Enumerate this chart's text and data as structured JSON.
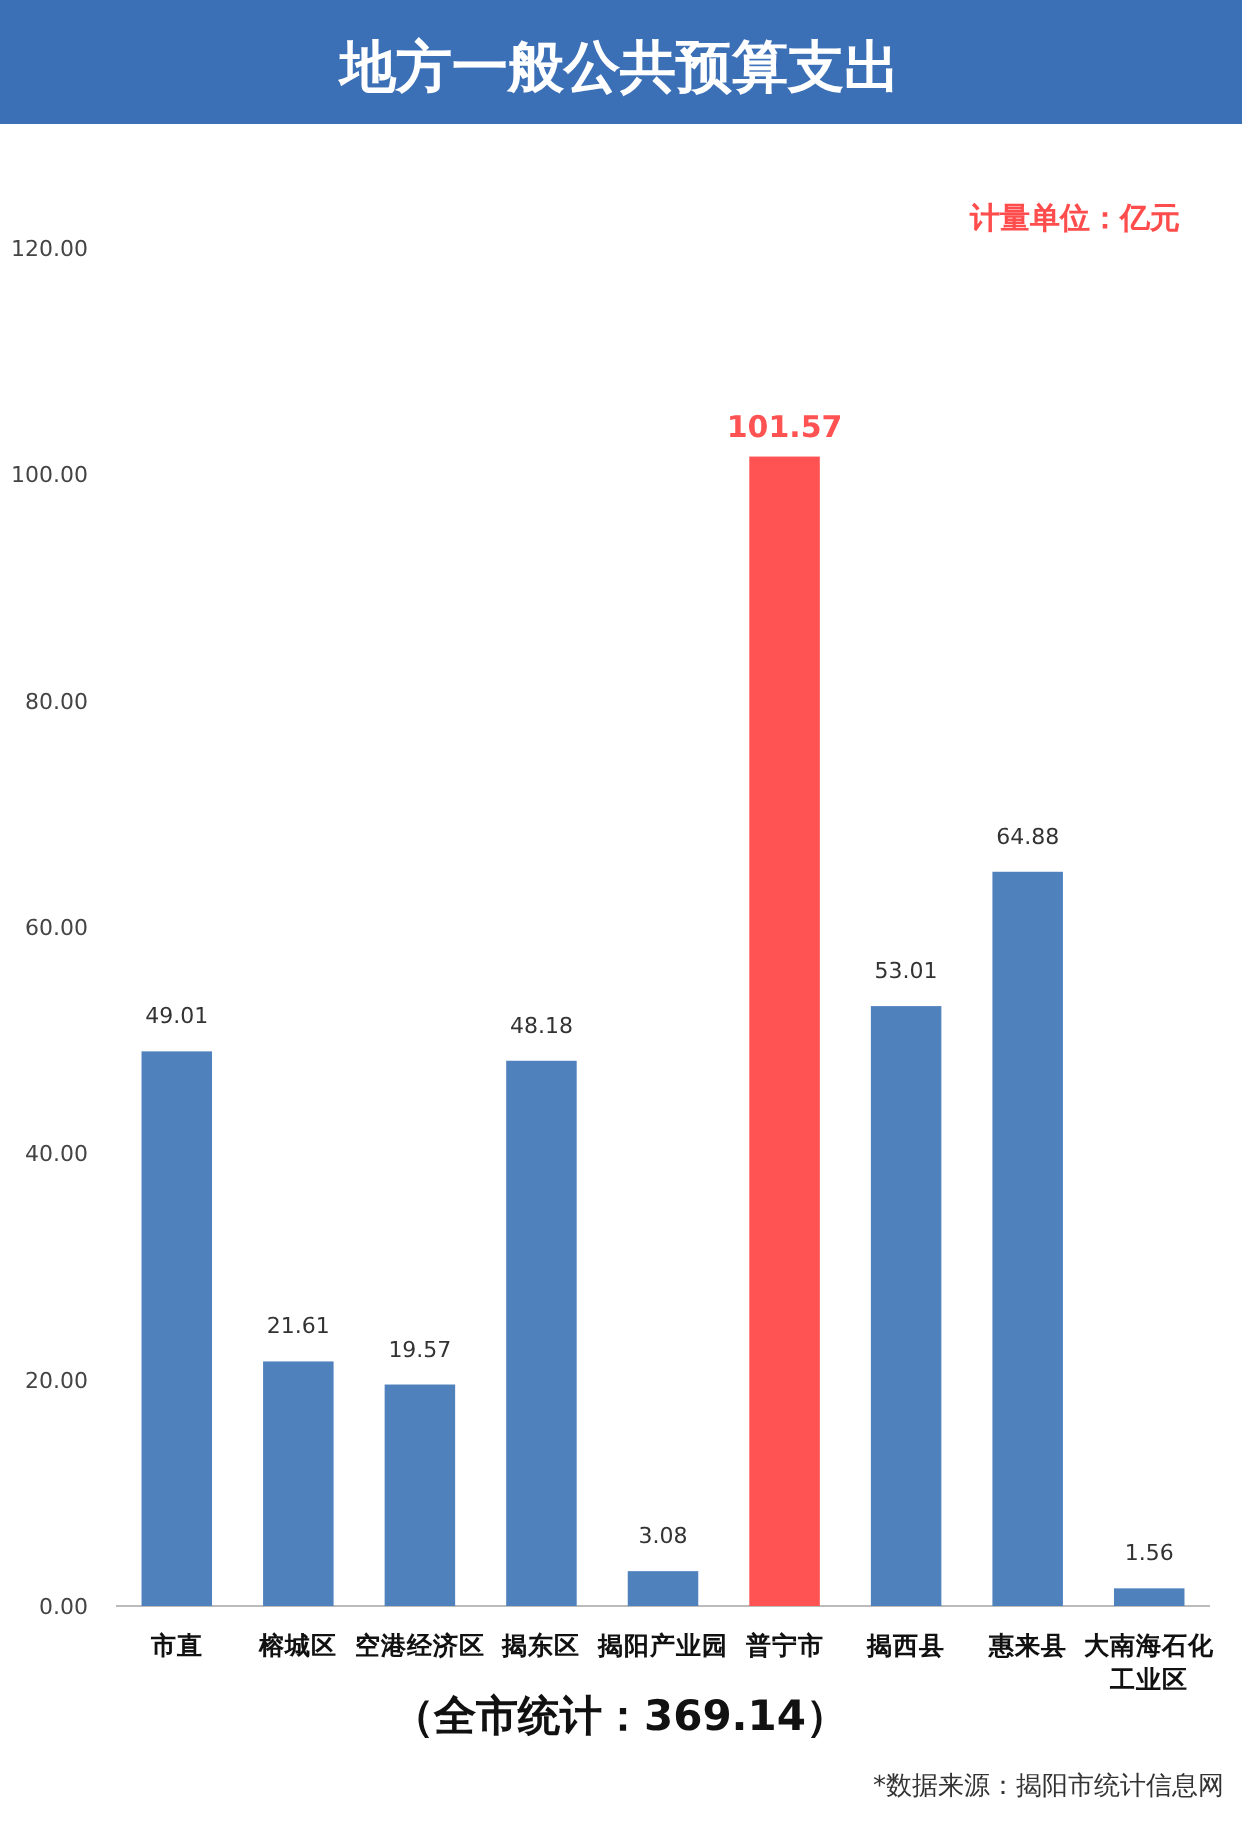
{
  "chart_data": {
    "type": "bar",
    "title": "地方一般公共预算支出",
    "categories": [
      "市直",
      "榕城区",
      "空港经济区",
      "揭东区",
      "揭阳产业园",
      "普宁市",
      "揭西县",
      "惠来县",
      "大南海石化工业区"
    ],
    "values": [
      49.01,
      21.61,
      19.57,
      48.18,
      3.08,
      101.57,
      53.01,
      64.88,
      1.56
    ],
    "colors": [
      "#4f81bd",
      "#4f81bd",
      "#4f81bd",
      "#4f81bd",
      "#4f81bd",
      "#ff5252",
      "#4f81bd",
      "#4f81bd",
      "#4f81bd"
    ],
    "data_labels": true,
    "ylim": [
      0,
      120
    ],
    "yticks": [
      {
        "value": 0,
        "label": "0.00"
      },
      {
        "value": 20,
        "label": "20.00"
      },
      {
        "value": 40,
        "label": "40.00"
      },
      {
        "value": 60,
        "label": "60.00"
      },
      {
        "value": 80,
        "label": "80.00"
      },
      {
        "value": 100,
        "label": "100.00"
      },
      {
        "value": 120,
        "label": "120.00"
      }
    ],
    "grid": false,
    "annotations": [
      "计量单位：亿元",
      "（全市统计：369.14）",
      "*数据来源：揭阳市统计信息网"
    ]
  }
}
